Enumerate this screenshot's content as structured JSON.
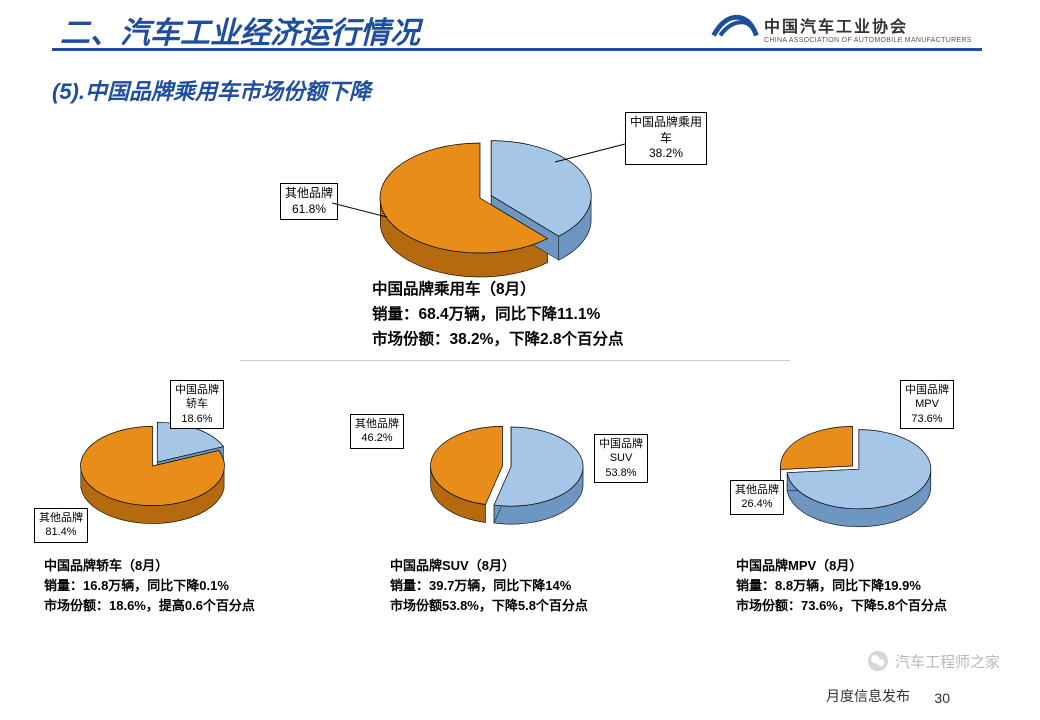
{
  "header": {
    "title": "二、汽车工业经济运行情况",
    "logo_cn": "中国汽车工业协会",
    "logo_en": "CHINA ASSOCIATION OF AUTOMOBILE MANUFACTURERS",
    "logo_color": "#1f4e9c"
  },
  "subtitle": "(5).中国品牌乘用车市场份额下降",
  "colors": {
    "blue": "#a6c6e8",
    "blue_side": "#6d96c2",
    "orange": "#e88c1a",
    "orange_side": "#b56a10",
    "title_blue": "#1f4e9c"
  },
  "main_pie": {
    "type": "pie3d",
    "slices": [
      {
        "name": "中国品牌乘用\n车",
        "value": 38.2,
        "color": "#a6c6e8",
        "label": "中国品牌乘用\n车\n38.2%",
        "exploded": true
      },
      {
        "name": "其他品牌",
        "value": 61.8,
        "color": "#e88c1a",
        "label": "其他品牌\n61.8%",
        "exploded": false
      }
    ],
    "caption": "中国品牌乘用车（8月）\n销量：68.4万辆，同比下降11.1%\n市场份额：38.2%，下降2.8个百分点"
  },
  "pie1": {
    "slices": [
      {
        "name": "中国品牌轿车",
        "value": 18.6,
        "color": "#a6c6e8",
        "label": "中国品牌\n轿车\n18.6%",
        "exploded": true
      },
      {
        "name": "其他品牌",
        "value": 81.4,
        "color": "#e88c1a",
        "label": "其他品牌\n81.4%",
        "exploded": false
      }
    ],
    "caption": "中国品牌轿车（8月）\n销量：16.8万辆，同比下降0.1%\n市场份额：18.6%，提高0.6个百分点"
  },
  "pie2": {
    "slices": [
      {
        "name": "中国品牌SUV",
        "value": 53.8,
        "color": "#a6c6e8",
        "label": "中国品牌\nSUV\n53.8%",
        "exploded": true
      },
      {
        "name": "其他品牌",
        "value": 46.2,
        "color": "#e88c1a",
        "label": "其他品牌\n46.2%",
        "exploded": false
      }
    ],
    "caption": "中国品牌SUV（8月）\n销量：39.7万辆，同比下降14%\n市场份额53.8%，下降5.8个百分点"
  },
  "pie3": {
    "slices": [
      {
        "name": "中国品牌MPV",
        "value": 73.6,
        "color": "#a6c6e8",
        "label": "中国品牌\nMPV\n73.6%",
        "exploded": true
      },
      {
        "name": "其他品牌",
        "value": 26.4,
        "color": "#e88c1a",
        "label": "其他品牌\n26.4%",
        "exploded": false
      }
    ],
    "caption": "中国品牌MPV（8月）\n销量：8.8万辆，同比下降19.9%\n市场份额：73.6%，下降5.8个百分点"
  },
  "footer": {
    "source": "月度信息发布",
    "page": "30",
    "watermark": "汽车工程师之家"
  }
}
